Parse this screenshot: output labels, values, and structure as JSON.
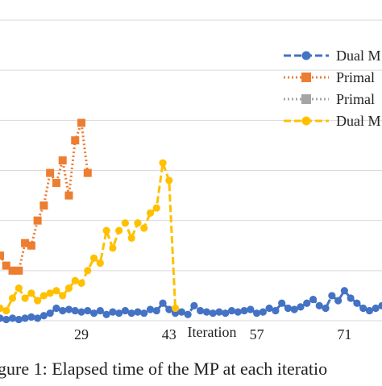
{
  "chart_data": {
    "type": "line",
    "title": "",
    "xlabel": "Iteration",
    "ylabel": "",
    "xlim": [
      16,
      77
    ],
    "ylim": [
      0,
      12
    ],
    "grid": true,
    "x_ticks": [
      "29",
      "43",
      "57",
      "71"
    ],
    "legend_position": "top-right",
    "series": [
      {
        "name": "Dual M",
        "color": "#4472C4",
        "style": "dashed",
        "marker": "circle",
        "x": [
          16,
          17,
          18,
          19,
          20,
          21,
          22,
          23,
          24,
          25,
          26,
          27,
          28,
          29,
          30,
          31,
          32,
          33,
          34,
          35,
          36,
          37,
          38,
          39,
          40,
          41,
          42,
          43,
          44,
          45,
          46,
          47,
          48,
          49,
          50,
          51,
          52,
          53,
          54,
          55,
          56,
          57,
          58,
          59,
          60,
          61,
          62,
          63,
          64,
          65,
          66,
          67,
          68,
          69,
          70,
          71,
          72,
          73,
          74,
          75,
          76,
          77
        ],
        "values": [
          0.1,
          0.05,
          0.1,
          0.05,
          0.1,
          0.15,
          0.1,
          0.2,
          0.3,
          0.5,
          0.4,
          0.45,
          0.4,
          0.35,
          0.4,
          0.3,
          0.4,
          0.25,
          0.35,
          0.3,
          0.4,
          0.3,
          0.35,
          0.3,
          0.45,
          0.4,
          0.7,
          0.45,
          0.3,
          0.35,
          0.25,
          0.6,
          0.4,
          0.35,
          0.3,
          0.35,
          0.3,
          0.4,
          0.35,
          0.4,
          0.45,
          0.3,
          0.35,
          0.5,
          0.4,
          0.7,
          0.5,
          0.45,
          0.55,
          0.7,
          0.85,
          0.6,
          0.5,
          1.0,
          0.8,
          1.2,
          0.9,
          0.7,
          0.5,
          0.4,
          0.5,
          0.6
        ]
      },
      {
        "name": "Primal",
        "color": "#ED7D31",
        "style": "dotted",
        "marker": "square",
        "x": [
          16,
          17,
          18,
          19,
          20,
          21,
          22,
          23,
          24,
          25,
          26,
          27,
          28,
          29,
          30
        ],
        "values": [
          2.6,
          2.2,
          2.0,
          2.0,
          3.1,
          3.0,
          4.0,
          4.6,
          5.9,
          5.5,
          6.4,
          5.0,
          7.2,
          7.9,
          5.9
        ]
      },
      {
        "name": "Primal",
        "color": "#A5A5A5",
        "style": "dotted",
        "marker": "square",
        "x": [],
        "values": []
      },
      {
        "name": "Dual M",
        "color": "#FFC000",
        "style": "dashed",
        "marker": "circle",
        "x": [
          16,
          17,
          18,
          19,
          20,
          21,
          22,
          23,
          24,
          25,
          26,
          27,
          28,
          29,
          30,
          31,
          32,
          33,
          34,
          35,
          36,
          37,
          38,
          39,
          40,
          41,
          42,
          43,
          44
        ],
        "values": [
          0.5,
          0.4,
          0.9,
          1.3,
          0.9,
          1.1,
          0.8,
          1.0,
          1.1,
          1.2,
          1.0,
          1.3,
          1.6,
          1.5,
          2.0,
          2.5,
          2.3,
          3.6,
          2.9,
          3.6,
          3.9,
          3.3,
          3.9,
          3.7,
          4.3,
          4.5,
          6.3,
          5.6,
          0.5
        ]
      }
    ]
  },
  "caption": "gure 1: Elapsed time of the MP at each iteratio"
}
